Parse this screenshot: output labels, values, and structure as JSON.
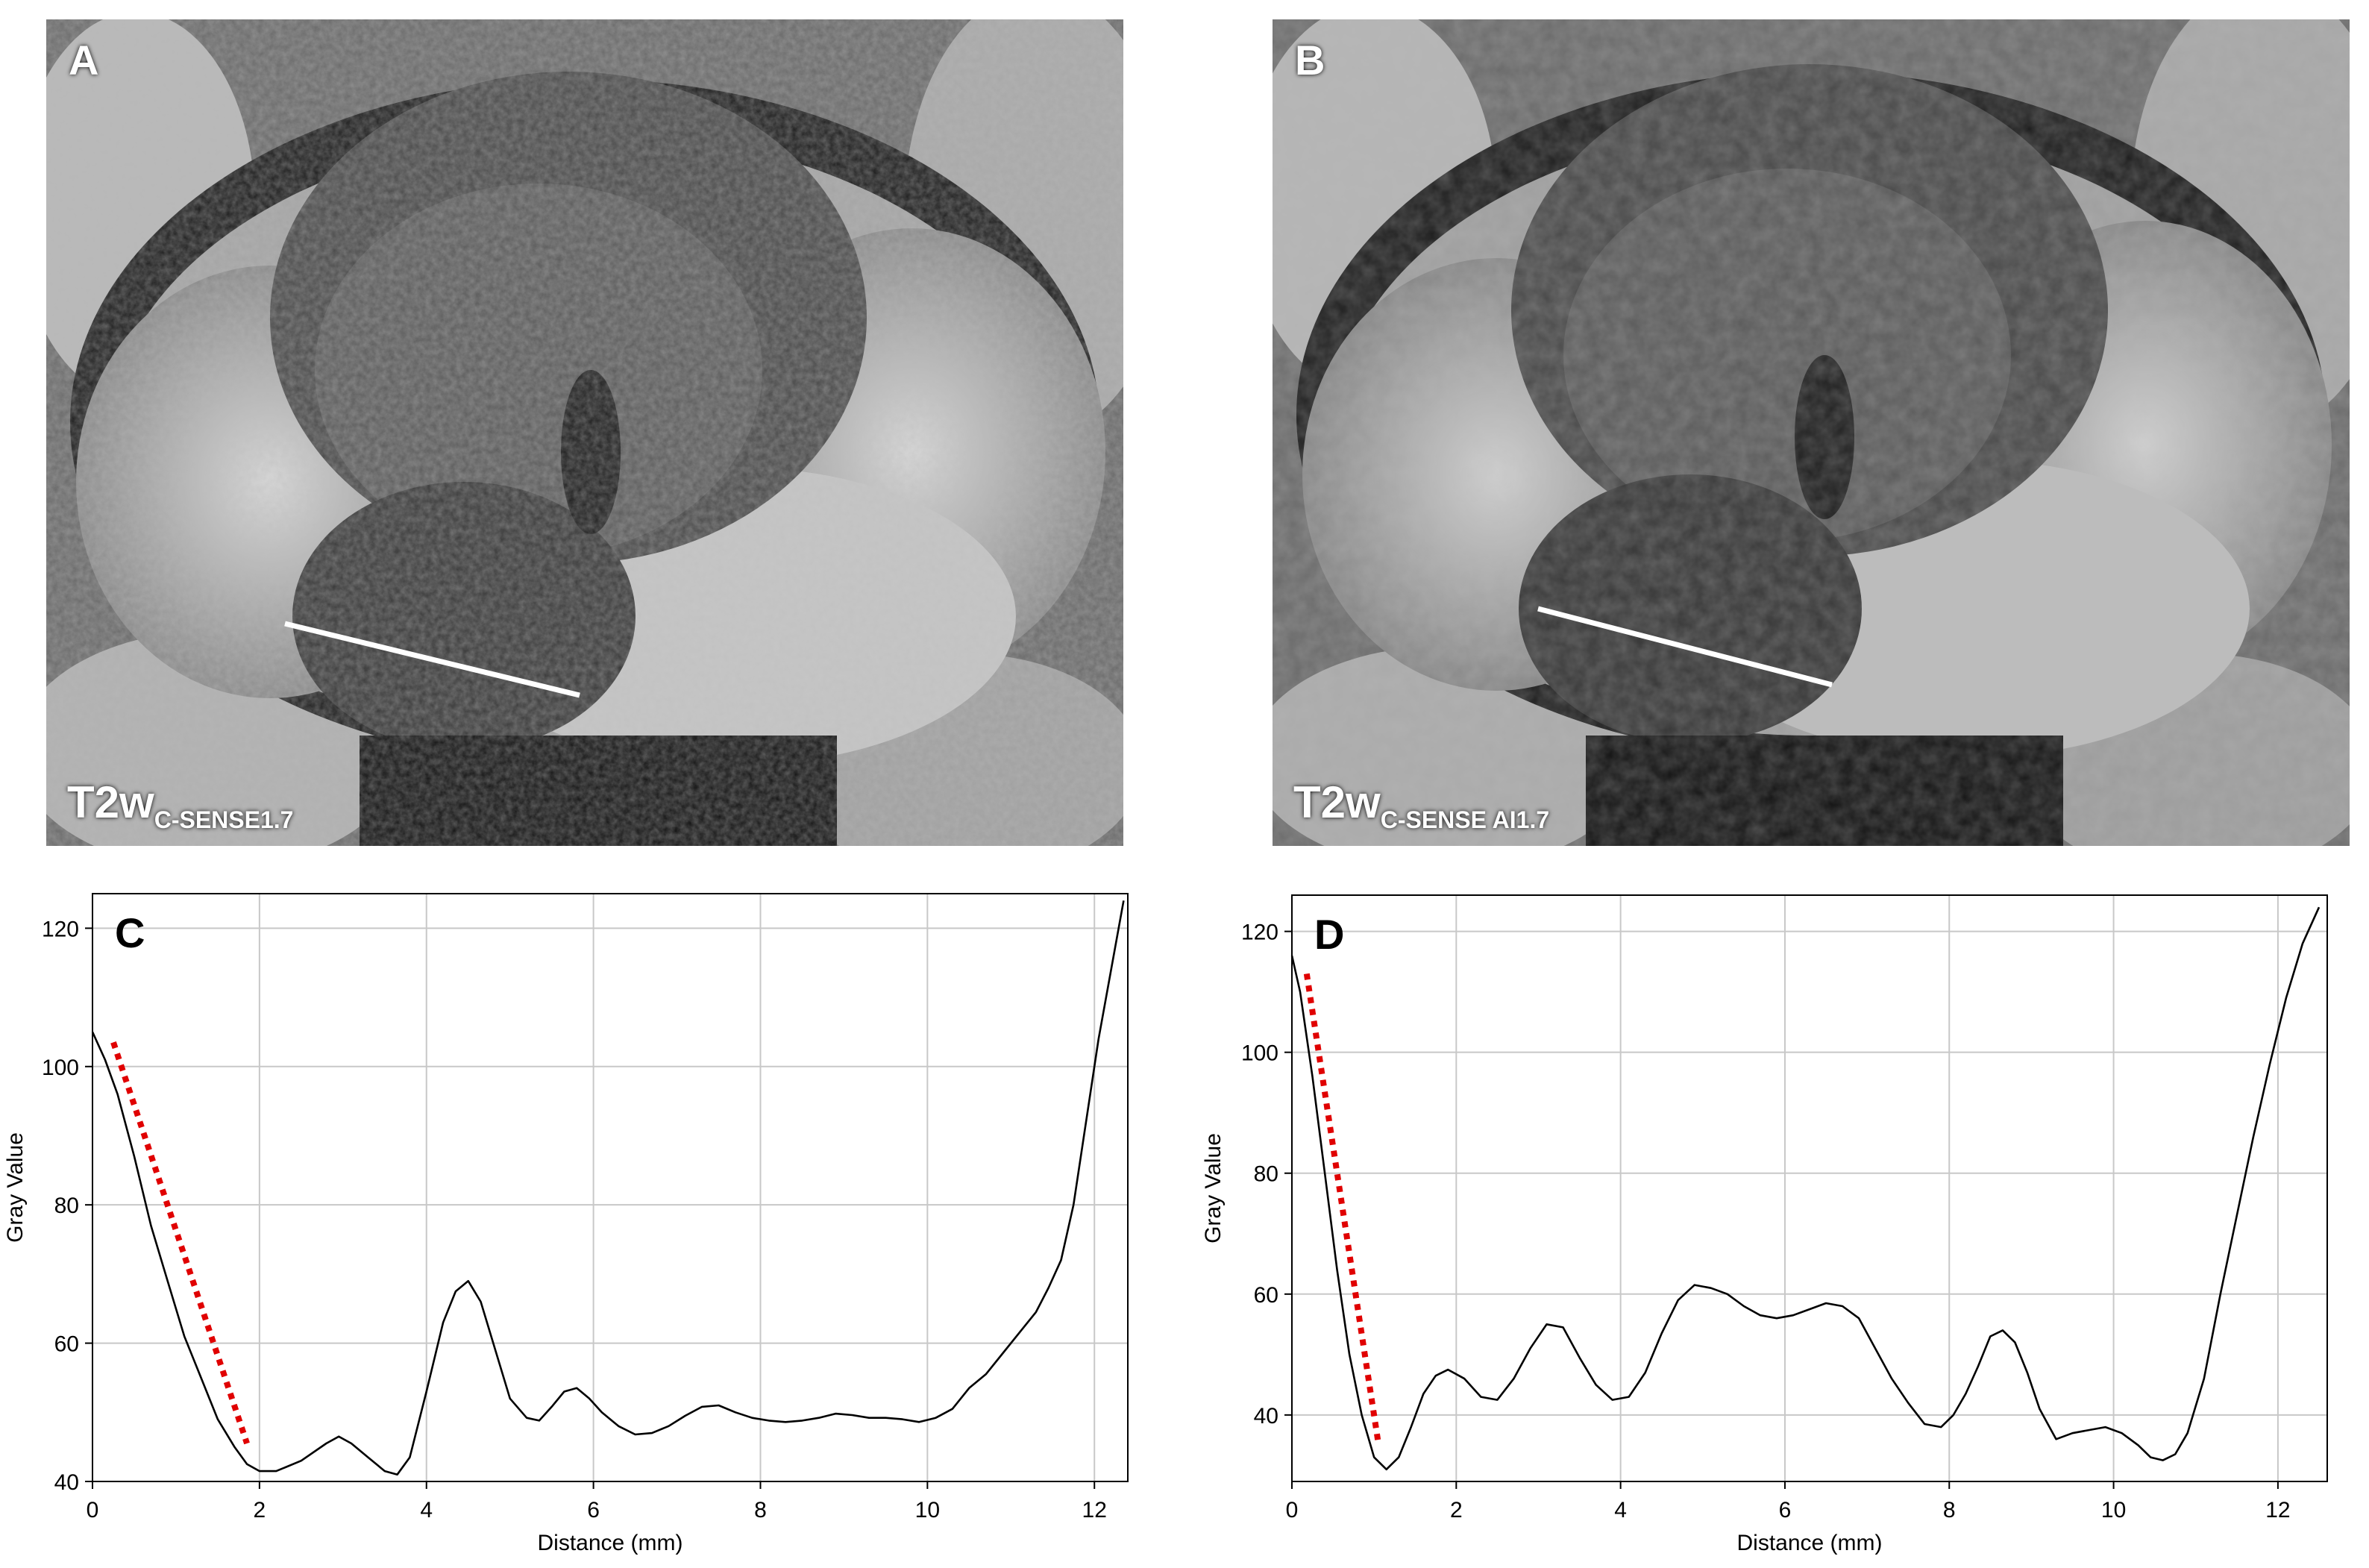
{
  "panels": [
    {
      "letter": "A",
      "sequence_main": "T2w",
      "sequence_sub": "C-SENSE1.7"
    },
    {
      "letter": "B",
      "sequence_main": "T2w",
      "sequence_sub": "C-SENSE AI1.7"
    }
  ],
  "chart_data": [
    {
      "type": "line",
      "panel_label": "C",
      "xlabel": "Distance (mm)",
      "ylabel": "Gray Value",
      "xlim": [
        0,
        12.4
      ],
      "ylim": [
        40,
        125
      ],
      "xticks": [
        0,
        2,
        4,
        6,
        8,
        10,
        12
      ],
      "yticks": [
        40,
        60,
        80,
        100,
        120
      ],
      "grid": true,
      "series": [
        {
          "color": "#000000",
          "x": [
            0,
            0.15,
            0.3,
            0.5,
            0.7,
            0.9,
            1.1,
            1.3,
            1.5,
            1.7,
            1.85,
            2.0,
            2.2,
            2.5,
            2.8,
            2.95,
            3.1,
            3.3,
            3.5,
            3.65,
            3.8,
            4.0,
            4.2,
            4.35,
            4.5,
            4.65,
            4.8,
            5.0,
            5.2,
            5.35,
            5.5,
            5.65,
            5.8,
            5.95,
            6.1,
            6.3,
            6.5,
            6.7,
            6.9,
            7.1,
            7.3,
            7.5,
            7.7,
            7.9,
            8.1,
            8.3,
            8.5,
            8.7,
            8.9,
            9.1,
            9.3,
            9.5,
            9.7,
            9.9,
            10.1,
            10.3,
            10.5,
            10.7,
            10.9,
            11.1,
            11.3,
            11.45,
            11.6,
            11.75,
            11.9,
            12.05,
            12.2,
            12.35
          ],
          "y": [
            105,
            101,
            96,
            87,
            77,
            69,
            61,
            55,
            49,
            45,
            42.5,
            41.5,
            41.5,
            43,
            45.5,
            46.5,
            45.5,
            43.5,
            41.5,
            41,
            43.5,
            53,
            63,
            67.5,
            69,
            66,
            60,
            52,
            49.2,
            48.8,
            50.8,
            53,
            53.5,
            52,
            50,
            48,
            46.8,
            47,
            48,
            49.5,
            50.8,
            51,
            50,
            49.2,
            48.8,
            48.6,
            48.8,
            49.2,
            49.8,
            49.6,
            49.2,
            49.2,
            49,
            48.6,
            49.2,
            50.5,
            53.5,
            55.5,
            58.5,
            61.5,
            64.5,
            68,
            72,
            80,
            92,
            104,
            114,
            124
          ]
        }
      ],
      "annotation": {
        "style": "red dotted line",
        "color": "#e00000",
        "x": [
          0.25,
          1.85
        ],
        "y": [
          103.5,
          45.5
        ]
      }
    },
    {
      "type": "line",
      "panel_label": "D",
      "xlabel": "Distance (mm)",
      "ylabel": "Gray Value",
      "xlim": [
        0,
        12.6
      ],
      "ylim": [
        29,
        126
      ],
      "xticks": [
        0,
        2,
        4,
        6,
        8,
        10,
        12
      ],
      "yticks": [
        40,
        60,
        80,
        100,
        120
      ],
      "grid": true,
      "series": [
        {
          "color": "#000000",
          "x": [
            0,
            0.1,
            0.25,
            0.4,
            0.55,
            0.7,
            0.85,
            1.0,
            1.15,
            1.3,
            1.45,
            1.6,
            1.75,
            1.9,
            2.1,
            2.3,
            2.5,
            2.7,
            2.9,
            3.1,
            3.3,
            3.5,
            3.7,
            3.9,
            4.1,
            4.3,
            4.5,
            4.7,
            4.9,
            5.1,
            5.3,
            5.5,
            5.7,
            5.9,
            6.1,
            6.3,
            6.5,
            6.7,
            6.9,
            7.1,
            7.3,
            7.5,
            7.7,
            7.9,
            8.05,
            8.2,
            8.35,
            8.5,
            8.65,
            8.8,
            8.95,
            9.1,
            9.3,
            9.5,
            9.7,
            9.9,
            10.1,
            10.3,
            10.45,
            10.6,
            10.75,
            10.9,
            11.1,
            11.3,
            11.5,
            11.7,
            11.9,
            12.1,
            12.3,
            12.5
          ],
          "y": [
            116,
            110,
            96,
            80,
            64,
            50,
            40,
            33,
            31,
            33,
            38,
            43.5,
            46.5,
            47.5,
            46,
            43,
            42.5,
            46,
            51,
            55,
            54.5,
            49.5,
            45,
            42.5,
            43,
            47,
            53.5,
            59,
            61.5,
            61,
            60,
            58,
            56.5,
            56,
            56.5,
            57.5,
            58.5,
            58,
            56,
            51,
            46,
            42,
            38.5,
            38,
            40,
            43.5,
            48,
            53,
            54,
            52,
            47,
            41,
            36,
            37,
            37.5,
            38,
            37,
            35,
            33,
            32.5,
            33.5,
            37,
            46,
            60,
            73,
            86,
            98,
            109,
            118,
            124
          ]
        }
      ],
      "annotation": {
        "style": "red dotted line",
        "color": "#e00000",
        "x": [
          0.18,
          1.05
        ],
        "y": [
          113,
          35.5
        ]
      }
    }
  ]
}
